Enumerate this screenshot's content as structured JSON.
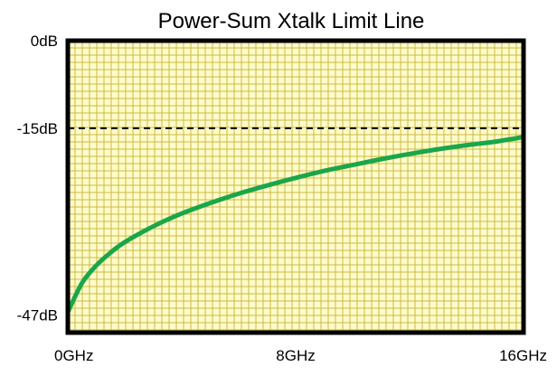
{
  "chart_data": {
    "type": "line",
    "title": "Power-Sum Xtalk Limit Line",
    "xlabel": "",
    "ylabel": "",
    "x_ticks": [
      {
        "value": 0,
        "label": "0GHz"
      },
      {
        "value": 8,
        "label": "8GHz"
      },
      {
        "value": 16,
        "label": "16GHz"
      }
    ],
    "y_ticks": [
      {
        "value": 0,
        "label": "0dB"
      },
      {
        "value": -15,
        "label": "-15dB"
      },
      {
        "value": -47,
        "label": "-47dB"
      }
    ],
    "xlim": [
      0,
      16
    ],
    "ylim": [
      -50,
      0
    ],
    "grid": true,
    "reference_line": {
      "y": -15,
      "style": "dashed"
    },
    "series": [
      {
        "x": [
          0,
          0.5,
          1,
          1.5,
          2,
          3,
          4,
          5,
          6,
          7,
          8,
          9,
          10,
          11,
          12,
          13,
          14,
          15,
          16
        ],
        "y": [
          -46.5,
          -41.5,
          -38.5,
          -36.3,
          -34.5,
          -31.8,
          -29.6,
          -27.8,
          -26.2,
          -24.8,
          -23.5,
          -22.3,
          -21.3,
          -20.3,
          -19.4,
          -18.6,
          -17.9,
          -17.3,
          -16.5
        ]
      }
    ]
  },
  "colors": {
    "plot_bg": "#fefcc8",
    "grid": "#cdb84a",
    "line": "#1aa64a",
    "frame": "#000000"
  }
}
